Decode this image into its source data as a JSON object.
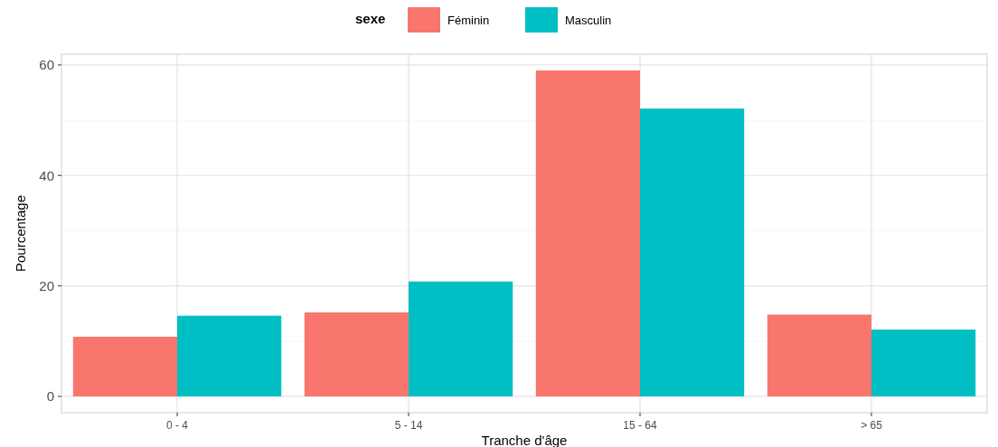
{
  "chart_data": {
    "type": "bar",
    "xlabel": "Tranche d'âge",
    "ylabel": "Pourcentage",
    "legend_title": "sexe",
    "legend": "top",
    "categories": [
      "0 - 4",
      "5 - 14",
      "15 - 64",
      "> 65"
    ],
    "series": [
      {
        "name": "Féminin",
        "color": "#f8766d",
        "values": [
          10.8,
          15.2,
          59.0,
          14.8
        ]
      },
      {
        "name": "Masculin",
        "color": "#00bfc4",
        "values": [
          14.6,
          20.8,
          52.1,
          12.1
        ]
      }
    ],
    "ylim": [
      -2.95,
      61.95
    ],
    "yticks": [
      0,
      20,
      40,
      60
    ],
    "grid": true
  }
}
